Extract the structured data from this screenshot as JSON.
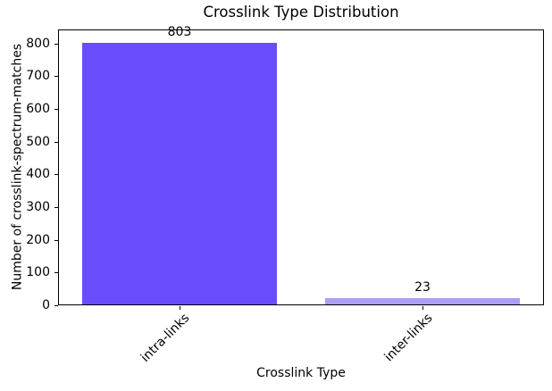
{
  "chart_data": {
    "type": "bar",
    "title": "Crosslink Type Distribution",
    "xlabel": "Crosslink Type",
    "ylabel": "Number of crosslink-spectrum-matches",
    "categories": [
      "intra-links",
      "inter-links"
    ],
    "values": [
      803,
      23
    ],
    "bar_value_labels": [
      "803",
      "23"
    ],
    "bar_colors": [
      "#6A4DFA",
      "#AB9DF8"
    ],
    "yticks": [
      0,
      100,
      200,
      300,
      400,
      500,
      600,
      700,
      800
    ],
    "ylim": [
      0,
      843
    ],
    "grid": false,
    "legend": false,
    "xtick_rotation_deg": 45,
    "spine_color": "#000000",
    "background_color": "#ffffff"
  }
}
